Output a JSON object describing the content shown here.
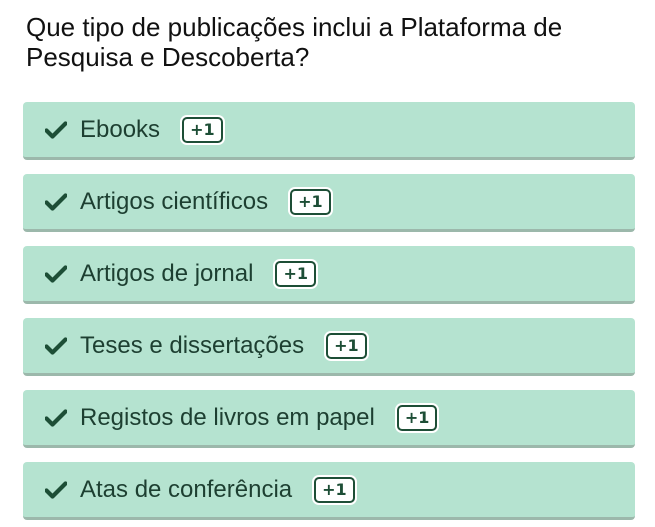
{
  "question": "Que tipo de publicações inclui a Plataforma de Pesquisa e Descoberta?",
  "options": [
    {
      "label": "Ebooks",
      "badge": "+1",
      "icon": "check-icon"
    },
    {
      "label": "Artigos científicos",
      "badge": "+1",
      "icon": "check-icon"
    },
    {
      "label": "Artigos de jornal",
      "badge": "+1",
      "icon": "check-icon"
    },
    {
      "label": "Teses e dissertações",
      "badge": "+1",
      "icon": "check-icon"
    },
    {
      "label": "Registos de livros em papel",
      "badge": "+1",
      "icon": "check-icon"
    },
    {
      "label": "Atas de conferência",
      "badge": "+1",
      "icon": "check-icon"
    }
  ],
  "colors": {
    "option_background": "#b5e3d0",
    "option_text": "#1d3f31",
    "check": "#1d4e36",
    "badge_border": "#1d4e36"
  }
}
